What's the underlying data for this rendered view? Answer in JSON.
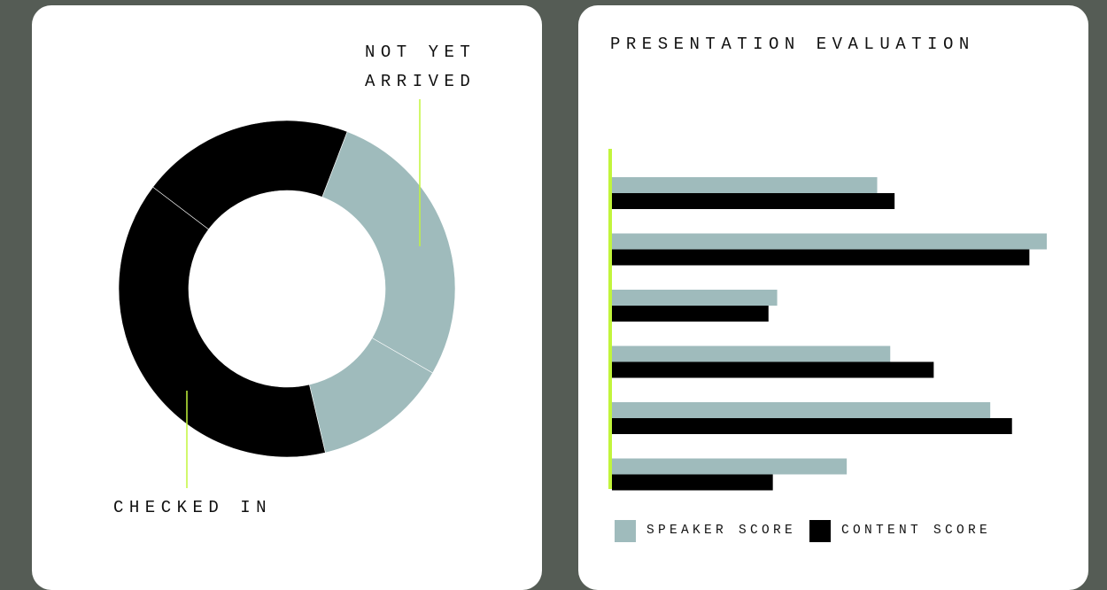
{
  "colors": {
    "background": "#555c55",
    "card": "#ffffff",
    "speaker": "#9fbbbc",
    "content": "#000000",
    "accent": "#c2f53c"
  },
  "chart_data": [
    {
      "type": "pie",
      "variant": "donut",
      "slices": [
        {
          "label": "NOT YET ARRIVED",
          "value": 0.275,
          "color": "#9fbbbc"
        },
        {
          "label": "",
          "value": 0.13,
          "color": "#9fbbbc"
        },
        {
          "label": "CHECKED IN",
          "value": 0.39,
          "color": "#000000"
        },
        {
          "label": "",
          "value": 0.205,
          "color": "#000000"
        }
      ],
      "callouts": {
        "not_yet_arrived": "NOT YET\nARRIVED",
        "checked_in": "CHECKED IN"
      }
    },
    {
      "type": "bar",
      "orientation": "horizontal",
      "title": "PRESENTATION EVALUATION",
      "legend_position": "bottom",
      "grid": false,
      "xlim": [
        0,
        100
      ],
      "categories": [
        "",
        "",
        "",
        "",
        "",
        ""
      ],
      "series": [
        {
          "name": "SPEAKER SCORE",
          "color": "#9fbbbc",
          "values": [
            61,
            100,
            38,
            64,
            87,
            54
          ]
        },
        {
          "name": "CONTENT SCORE",
          "color": "#000000",
          "values": [
            65,
            96,
            36,
            74,
            92,
            37
          ]
        }
      ]
    }
  ]
}
